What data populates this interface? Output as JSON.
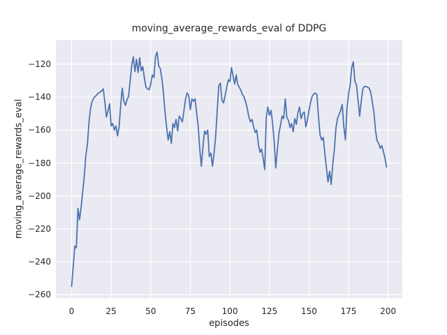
{
  "chart_data": {
    "type": "line",
    "title": "moving_average_rewards_eval of DDPG",
    "xlabel": "episodes",
    "ylabel": "moving_average_rewards_eval",
    "x_start": 0,
    "x_step": 1,
    "values": [
      -255,
      -243,
      -230.5,
      -231.5,
      -207.5,
      -214.5,
      -207,
      -197.5,
      -188,
      -175.5,
      -168.5,
      -155,
      -146.5,
      -142.5,
      -140.5,
      -139.5,
      -138.5,
      -137.5,
      -137,
      -136,
      -135,
      -143,
      -152,
      -148.5,
      -144,
      -157.5,
      -156,
      -160,
      -157.5,
      -163.5,
      -158,
      -145,
      -134.5,
      -142.5,
      -145,
      -141.5,
      -139.5,
      -130,
      -120.5,
      -115.5,
      -124.5,
      -117,
      -125,
      -116,
      -124,
      -121.5,
      -128.5,
      -134,
      -135,
      -135.5,
      -132,
      -126.5,
      -128,
      -115.5,
      -112.5,
      -121,
      -122.5,
      -128.5,
      -137,
      -149,
      -158,
      -166,
      -161,
      -168,
      -156,
      -158.5,
      -153.5,
      -160.5,
      -151.5,
      -153,
      -155,
      -148,
      -141,
      -137.5,
      -139,
      -147.5,
      -141,
      -142.5,
      -141,
      -149.5,
      -158,
      -172,
      -182,
      -170,
      -160.5,
      -162.5,
      -160,
      -176,
      -174,
      -182,
      -174,
      -164,
      -148,
      -133,
      -131.5,
      -142,
      -143.5,
      -139,
      -134,
      -129.5,
      -130.5,
      -122,
      -127,
      -132,
      -126.5,
      -132.5,
      -134,
      -136,
      -138.5,
      -140,
      -143,
      -147,
      -152,
      -155,
      -153.5,
      -158,
      -161.5,
      -160,
      -168.5,
      -173.5,
      -171.5,
      -177,
      -184,
      -152,
      -146,
      -151,
      -148,
      -156,
      -167,
      -183,
      -172,
      -162,
      -157,
      -151.5,
      -153,
      -141,
      -152.5,
      -154,
      -158.5,
      -156,
      -161,
      -153,
      -156.5,
      -149.5,
      -146,
      -153,
      -150,
      -149,
      -158,
      -154,
      -148,
      -143,
      -139.5,
      -138,
      -137.5,
      -138.5,
      -152,
      -163,
      -166,
      -164.5,
      -174,
      -183,
      -191.5,
      -185,
      -193,
      -181,
      -172,
      -159,
      -153,
      -150.5,
      -148,
      -144.5,
      -158,
      -166,
      -147,
      -138,
      -132.5,
      -122,
      -118.5,
      -130.5,
      -132.5,
      -142,
      -151.5,
      -142.5,
      -135,
      -133.5,
      -133.5,
      -134,
      -134.5,
      -137,
      -143,
      -149,
      -160,
      -166.5,
      -168,
      -171,
      -169.5,
      -173,
      -177,
      -182.5
    ],
    "x_ticks": [
      0,
      25,
      50,
      75,
      100,
      125,
      150,
      175,
      200
    ],
    "x_tick_labels": [
      "0",
      "25",
      "50",
      "75",
      "100",
      "125",
      "150",
      "175",
      "200"
    ],
    "y_ticks": [
      -120,
      -140,
      -160,
      -180,
      -200,
      -220,
      -240,
      -260
    ],
    "y_tick_labels": [
      "−120",
      "−140",
      "−160",
      "−180",
      "−200",
      "−220",
      "−240",
      "−260"
    ],
    "xlim": [
      -9.95,
      208.95
    ],
    "ylim": [
      -262.1,
      -105.4
    ],
    "grid": true,
    "legend_position": "none",
    "line_color": "#4c72b0",
    "axes_bg_color": "#eaeaf2",
    "grid_color": "#ffffff",
    "text_color": "#262626"
  }
}
